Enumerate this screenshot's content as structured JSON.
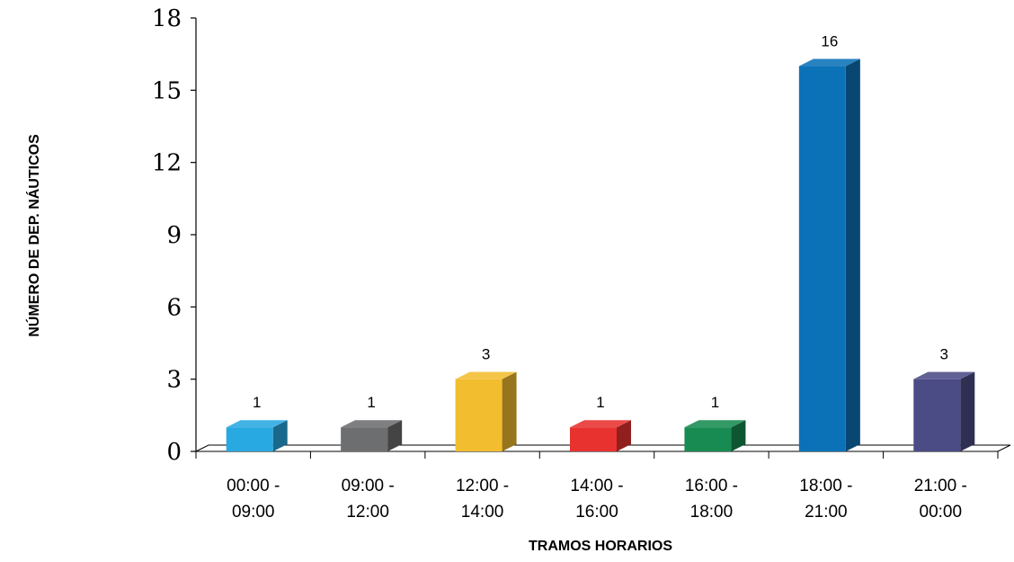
{
  "chart_data": {
    "type": "bar",
    "title": "",
    "xlabel": "TRAMOS HORARIOS",
    "ylabel": "NÚMERO DE DEP. NÁUTICOS",
    "ylim": [
      0,
      18
    ],
    "yticks": [
      "0",
      "3",
      "6",
      "9",
      "12",
      "15",
      "18"
    ],
    "categories": [
      [
        "00:00 -",
        "09:00"
      ],
      [
        "09:00 -",
        "12:00"
      ],
      [
        "12:00 -",
        "14:00"
      ],
      [
        "14:00 -",
        "16:00"
      ],
      [
        "16:00 -",
        "18:00"
      ],
      [
        "18:00 -",
        "21:00"
      ],
      [
        "21:00 -",
        "00:00"
      ]
    ],
    "values": [
      1,
      1,
      3,
      1,
      1,
      16,
      3
    ],
    "data_labels": [
      "1",
      "1",
      "3",
      "1",
      "1",
      "16",
      "3"
    ],
    "colors": [
      "#29a9e1",
      "#6d6e70",
      "#f2bd2f",
      "#e8322f",
      "#178b51",
      "#0c72b8",
      "#4b4c86"
    ],
    "grid": false,
    "legend": "none"
  }
}
